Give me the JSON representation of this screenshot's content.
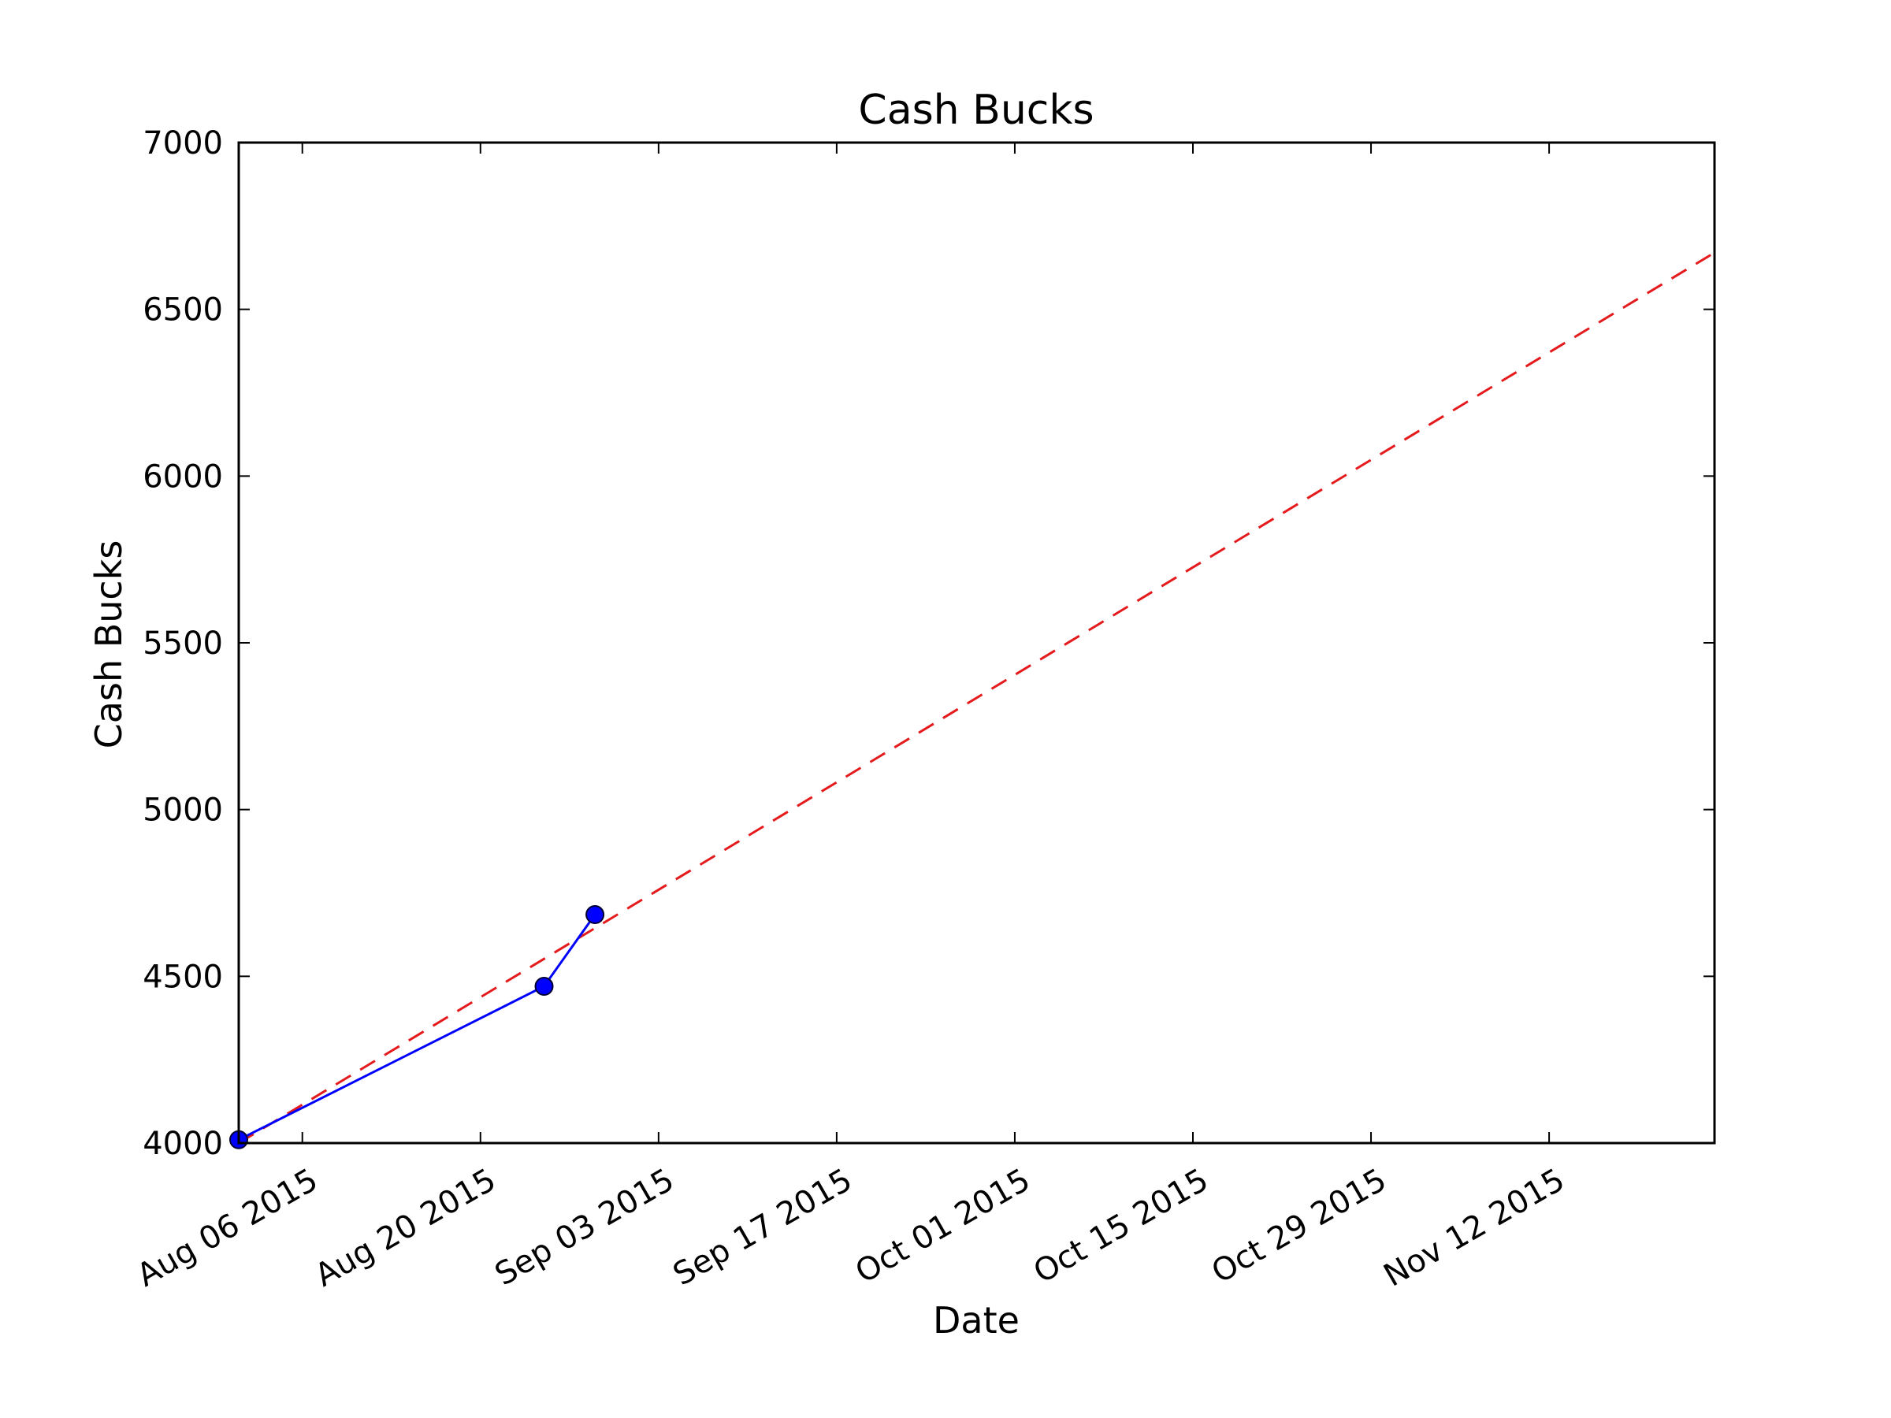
{
  "chart_data": {
    "type": "line",
    "title": "Cash Bucks",
    "xlabel": "Date",
    "ylabel": "Cash Bucks",
    "xlim": [
      "2015-08-01",
      "2015-11-25"
    ],
    "ylim": [
      4000,
      7000
    ],
    "x_ticks": [
      "2015-08-06",
      "2015-08-20",
      "2015-09-03",
      "2015-09-17",
      "2015-10-01",
      "2015-10-15",
      "2015-10-29",
      "2015-11-12"
    ],
    "x_tick_labels": [
      "Aug 06 2015",
      "Aug 20 2015",
      "Sep 03 2015",
      "Sep 17 2015",
      "Oct 01 2015",
      "Oct 15 2015",
      "Oct 29 2015",
      "Nov 12 2015"
    ],
    "y_ticks": [
      4000,
      4500,
      5000,
      5500,
      6000,
      6500,
      7000
    ],
    "y_tick_labels": [
      "4000",
      "4500",
      "5000",
      "5500",
      "6000",
      "6500",
      "7000"
    ],
    "grid": false,
    "series": [
      {
        "style": "solid",
        "marker": "circle",
        "color": "#0000ff",
        "points": [
          {
            "x": "2015-08-01",
            "y": 4010
          },
          {
            "x": "2015-08-25",
            "y": 4470
          },
          {
            "x": "2015-08-29",
            "y": 4685
          }
        ]
      },
      {
        "style": "dashed",
        "color": "#e41a1c",
        "points": [
          {
            "x": "2015-08-01",
            "y": 4000
          },
          {
            "x": "2015-11-25",
            "y": 6670
          }
        ]
      }
    ]
  }
}
